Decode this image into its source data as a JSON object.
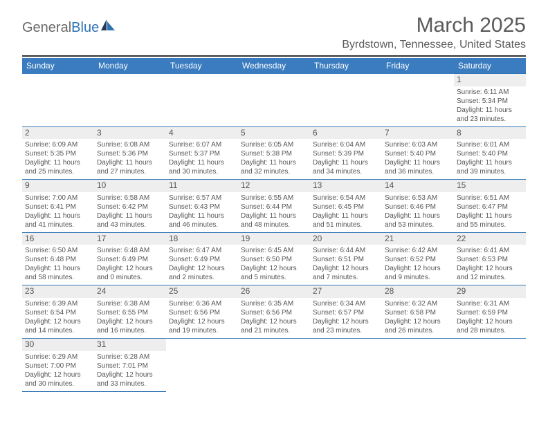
{
  "logo": {
    "text1": "General",
    "text2": "Blue"
  },
  "title": "March 2025",
  "location": "Byrdstown, Tennessee, United States",
  "colors": {
    "header_bg": "#3a7cbf",
    "header_text": "#ffffff",
    "rule": "#323232",
    "cell_border": "#2e74b5",
    "daynum_bg": "#eeeeee",
    "text": "#555555",
    "logo_blue": "#2e74b5"
  },
  "weekdays": [
    "Sunday",
    "Monday",
    "Tuesday",
    "Wednesday",
    "Thursday",
    "Friday",
    "Saturday"
  ],
  "weeks": [
    [
      null,
      null,
      null,
      null,
      null,
      null,
      {
        "n": "1",
        "sr": "Sunrise: 6:11 AM",
        "ss": "Sunset: 5:34 PM",
        "d1": "Daylight: 11 hours",
        "d2": "and 23 minutes."
      }
    ],
    [
      {
        "n": "2",
        "sr": "Sunrise: 6:09 AM",
        "ss": "Sunset: 5:35 PM",
        "d1": "Daylight: 11 hours",
        "d2": "and 25 minutes."
      },
      {
        "n": "3",
        "sr": "Sunrise: 6:08 AM",
        "ss": "Sunset: 5:36 PM",
        "d1": "Daylight: 11 hours",
        "d2": "and 27 minutes."
      },
      {
        "n": "4",
        "sr": "Sunrise: 6:07 AM",
        "ss": "Sunset: 5:37 PM",
        "d1": "Daylight: 11 hours",
        "d2": "and 30 minutes."
      },
      {
        "n": "5",
        "sr": "Sunrise: 6:05 AM",
        "ss": "Sunset: 5:38 PM",
        "d1": "Daylight: 11 hours",
        "d2": "and 32 minutes."
      },
      {
        "n": "6",
        "sr": "Sunrise: 6:04 AM",
        "ss": "Sunset: 5:39 PM",
        "d1": "Daylight: 11 hours",
        "d2": "and 34 minutes."
      },
      {
        "n": "7",
        "sr": "Sunrise: 6:03 AM",
        "ss": "Sunset: 5:40 PM",
        "d1": "Daylight: 11 hours",
        "d2": "and 36 minutes."
      },
      {
        "n": "8",
        "sr": "Sunrise: 6:01 AM",
        "ss": "Sunset: 5:40 PM",
        "d1": "Daylight: 11 hours",
        "d2": "and 39 minutes."
      }
    ],
    [
      {
        "n": "9",
        "sr": "Sunrise: 7:00 AM",
        "ss": "Sunset: 6:41 PM",
        "d1": "Daylight: 11 hours",
        "d2": "and 41 minutes."
      },
      {
        "n": "10",
        "sr": "Sunrise: 6:58 AM",
        "ss": "Sunset: 6:42 PM",
        "d1": "Daylight: 11 hours",
        "d2": "and 43 minutes."
      },
      {
        "n": "11",
        "sr": "Sunrise: 6:57 AM",
        "ss": "Sunset: 6:43 PM",
        "d1": "Daylight: 11 hours",
        "d2": "and 46 minutes."
      },
      {
        "n": "12",
        "sr": "Sunrise: 6:55 AM",
        "ss": "Sunset: 6:44 PM",
        "d1": "Daylight: 11 hours",
        "d2": "and 48 minutes."
      },
      {
        "n": "13",
        "sr": "Sunrise: 6:54 AM",
        "ss": "Sunset: 6:45 PM",
        "d1": "Daylight: 11 hours",
        "d2": "and 51 minutes."
      },
      {
        "n": "14",
        "sr": "Sunrise: 6:53 AM",
        "ss": "Sunset: 6:46 PM",
        "d1": "Daylight: 11 hours",
        "d2": "and 53 minutes."
      },
      {
        "n": "15",
        "sr": "Sunrise: 6:51 AM",
        "ss": "Sunset: 6:47 PM",
        "d1": "Daylight: 11 hours",
        "d2": "and 55 minutes."
      }
    ],
    [
      {
        "n": "16",
        "sr": "Sunrise: 6:50 AM",
        "ss": "Sunset: 6:48 PM",
        "d1": "Daylight: 11 hours",
        "d2": "and 58 minutes."
      },
      {
        "n": "17",
        "sr": "Sunrise: 6:48 AM",
        "ss": "Sunset: 6:49 PM",
        "d1": "Daylight: 12 hours",
        "d2": "and 0 minutes."
      },
      {
        "n": "18",
        "sr": "Sunrise: 6:47 AM",
        "ss": "Sunset: 6:49 PM",
        "d1": "Daylight: 12 hours",
        "d2": "and 2 minutes."
      },
      {
        "n": "19",
        "sr": "Sunrise: 6:45 AM",
        "ss": "Sunset: 6:50 PM",
        "d1": "Daylight: 12 hours",
        "d2": "and 5 minutes."
      },
      {
        "n": "20",
        "sr": "Sunrise: 6:44 AM",
        "ss": "Sunset: 6:51 PM",
        "d1": "Daylight: 12 hours",
        "d2": "and 7 minutes."
      },
      {
        "n": "21",
        "sr": "Sunrise: 6:42 AM",
        "ss": "Sunset: 6:52 PM",
        "d1": "Daylight: 12 hours",
        "d2": "and 9 minutes."
      },
      {
        "n": "22",
        "sr": "Sunrise: 6:41 AM",
        "ss": "Sunset: 6:53 PM",
        "d1": "Daylight: 12 hours",
        "d2": "and 12 minutes."
      }
    ],
    [
      {
        "n": "23",
        "sr": "Sunrise: 6:39 AM",
        "ss": "Sunset: 6:54 PM",
        "d1": "Daylight: 12 hours",
        "d2": "and 14 minutes."
      },
      {
        "n": "24",
        "sr": "Sunrise: 6:38 AM",
        "ss": "Sunset: 6:55 PM",
        "d1": "Daylight: 12 hours",
        "d2": "and 16 minutes."
      },
      {
        "n": "25",
        "sr": "Sunrise: 6:36 AM",
        "ss": "Sunset: 6:56 PM",
        "d1": "Daylight: 12 hours",
        "d2": "and 19 minutes."
      },
      {
        "n": "26",
        "sr": "Sunrise: 6:35 AM",
        "ss": "Sunset: 6:56 PM",
        "d1": "Daylight: 12 hours",
        "d2": "and 21 minutes."
      },
      {
        "n": "27",
        "sr": "Sunrise: 6:34 AM",
        "ss": "Sunset: 6:57 PM",
        "d1": "Daylight: 12 hours",
        "d2": "and 23 minutes."
      },
      {
        "n": "28",
        "sr": "Sunrise: 6:32 AM",
        "ss": "Sunset: 6:58 PM",
        "d1": "Daylight: 12 hours",
        "d2": "and 26 minutes."
      },
      {
        "n": "29",
        "sr": "Sunrise: 6:31 AM",
        "ss": "Sunset: 6:59 PM",
        "d1": "Daylight: 12 hours",
        "d2": "and 28 minutes."
      }
    ],
    [
      {
        "n": "30",
        "sr": "Sunrise: 6:29 AM",
        "ss": "Sunset: 7:00 PM",
        "d1": "Daylight: 12 hours",
        "d2": "and 30 minutes."
      },
      {
        "n": "31",
        "sr": "Sunrise: 6:28 AM",
        "ss": "Sunset: 7:01 PM",
        "d1": "Daylight: 12 hours",
        "d2": "and 33 minutes."
      },
      null,
      null,
      null,
      null,
      null
    ]
  ]
}
